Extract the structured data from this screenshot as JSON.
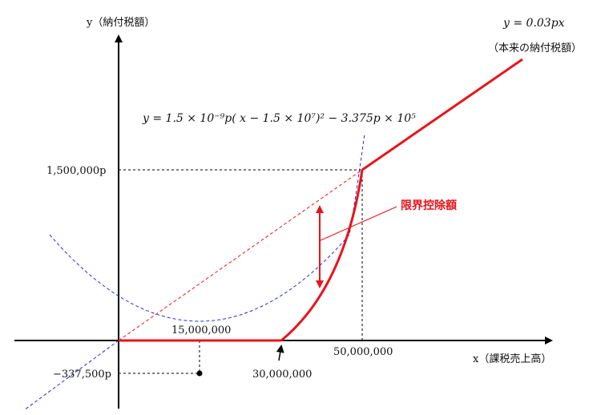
{
  "axes": {
    "y_label": "y（納付税額）",
    "x_label": "x（課税売上高）"
  },
  "formulas": {
    "line": "y = 0.03px",
    "line_note": "（本来の納付税額）",
    "parabola": "y = 1.5 × 10⁻⁹p( x − 1.5 × 10⁷)² − 3.375p × 10⁵"
  },
  "ticks": {
    "y_upper": "1,500,000p",
    "y_lower": "−337,500p",
    "x_15m": "15,000,000",
    "x_30m": "30,000,000",
    "x_50m": "50,000,000"
  },
  "annotation": {
    "label": "限界控除額"
  },
  "colors": {
    "red": "#e8141b",
    "blue": "#2b2bd6",
    "axis": "#000000"
  }
}
